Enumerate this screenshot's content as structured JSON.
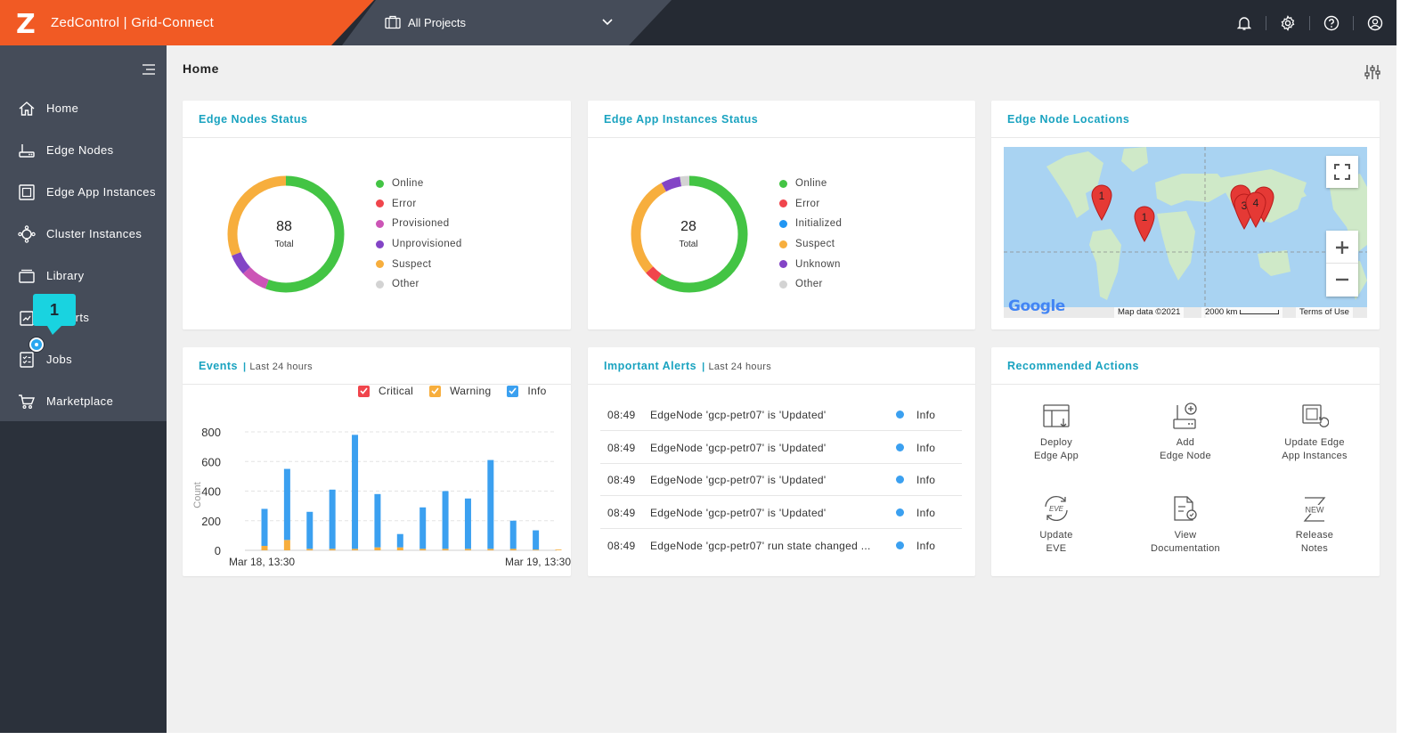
{
  "header": {
    "logo": "Z",
    "title": "ZedControl | Grid-Connect",
    "project_selector": "All Projects"
  },
  "sidebar": {
    "items": [
      {
        "label": "Home",
        "icon": "home-icon"
      },
      {
        "label": "Edge Nodes",
        "icon": "edge-node-icon"
      },
      {
        "label": "Edge App Instances",
        "icon": "app-instance-icon"
      },
      {
        "label": "Cluster Instances",
        "icon": "cluster-icon"
      },
      {
        "label": "Library",
        "icon": "library-icon"
      },
      {
        "label": "Reports",
        "icon": "reports-icon"
      },
      {
        "label": "Jobs",
        "icon": "jobs-icon"
      },
      {
        "label": "Marketplace",
        "icon": "cart-icon"
      }
    ],
    "tooltip": "1"
  },
  "page": {
    "title": "Home"
  },
  "edge_nodes_status": {
    "title": "Edge Nodes Status",
    "total": "88",
    "total_label": "Total",
    "legend": [
      {
        "label": "Online",
        "color": "#43c444"
      },
      {
        "label": "Error",
        "color": "#f0454c"
      },
      {
        "label": "Provisioned",
        "color": "#cc55b6"
      },
      {
        "label": "Unprovisioned",
        "color": "#8344c6"
      },
      {
        "label": "Suspect",
        "color": "#f7ae3d"
      },
      {
        "label": "Other",
        "color": "#d3d3d3"
      }
    ]
  },
  "edge_app_status": {
    "title": "Edge App Instances Status",
    "total": "28",
    "total_label": "Total",
    "legend": [
      {
        "label": "Online",
        "color": "#43c444"
      },
      {
        "label": "Error",
        "color": "#f0454c"
      },
      {
        "label": "Initialized",
        "color": "#2196f3"
      },
      {
        "label": "Suspect",
        "color": "#f7ae3d"
      },
      {
        "label": "Unknown",
        "color": "#8344c6"
      },
      {
        "label": "Other",
        "color": "#d3d3d3"
      }
    ]
  },
  "locations": {
    "title": "Edge Node Locations",
    "markers": [
      "1",
      "1",
      "3",
      "4"
    ],
    "footer_data": "Map data ©2021",
    "footer_scale": "2000 km",
    "footer_terms": "Terms of Use",
    "google": "Google"
  },
  "events": {
    "title": "Events",
    "subtitle": "Last 24 hours",
    "legend": [
      {
        "label": "Critical",
        "color": "#f0454c"
      },
      {
        "label": "Warning",
        "color": "#f7ae3d"
      },
      {
        "label": "Info",
        "color": "#3ba0f0"
      }
    ]
  },
  "chart_data": {
    "type": "bar",
    "stacked": true,
    "ylabel": "Count",
    "ylim": [
      0,
      800
    ],
    "yticks": [
      0,
      200,
      400,
      600,
      800
    ],
    "x_tick_labels": [
      "Mar 18, 13:30",
      "Mar 19, 13:30"
    ],
    "series": [
      {
        "name": "Warning",
        "values": [
          30,
          70,
          10,
          10,
          10,
          20,
          20,
          10,
          10,
          10,
          10,
          10,
          5,
          5
        ]
      },
      {
        "name": "Info",
        "values": [
          250,
          480,
          250,
          400,
          770,
          360,
          90,
          280,
          390,
          340,
          600,
          190,
          130,
          0
        ]
      }
    ],
    "grid": true,
    "legend_position": "top-right"
  },
  "alerts": {
    "title": "Important Alerts",
    "subtitle": "Last 24 hours",
    "rows": [
      {
        "time": "08:49",
        "message": "EdgeNode 'gcp-petr07' is 'Updated'",
        "severity": "Info"
      },
      {
        "time": "08:49",
        "message": "EdgeNode 'gcp-petr07' is 'Updated'",
        "severity": "Info"
      },
      {
        "time": "08:49",
        "message": "EdgeNode 'gcp-petr07' is 'Updated'",
        "severity": "Info"
      },
      {
        "time": "08:49",
        "message": "EdgeNode 'gcp-petr07' is 'Updated'",
        "severity": "Info"
      },
      {
        "time": "08:49",
        "message": "EdgeNode 'gcp-petr07' run state changed ...",
        "severity": "Info"
      }
    ],
    "severity_color": "#3ba0f0"
  },
  "actions": {
    "title": "Recommended Actions",
    "items": [
      {
        "line1": "Deploy",
        "line2": "Edge App",
        "icon": "deploy-app-icon"
      },
      {
        "line1": "Add",
        "line2": "Edge Node",
        "icon": "add-node-icon"
      },
      {
        "line1": "Update Edge",
        "line2": "App Instances",
        "icon": "update-instances-icon"
      },
      {
        "line1": "Update",
        "line2": "EVE",
        "icon": "update-eve-icon"
      },
      {
        "line1": "View",
        "line2": "Documentation",
        "icon": "documentation-icon"
      },
      {
        "line1": "Release",
        "line2": "Notes",
        "icon": "release-notes-icon"
      }
    ]
  }
}
